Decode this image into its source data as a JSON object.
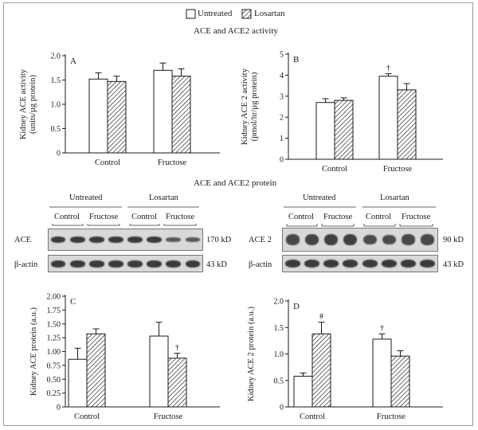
{
  "legend": {
    "untreated": "Untreated",
    "losartan": "Losartan"
  },
  "sections": {
    "activity_title": "ACE and ACE2 activity",
    "protein_title": "ACE and ACE2 protein"
  },
  "blots": {
    "left": {
      "group_labels": [
        "Untreated",
        "Losartan"
      ],
      "sub_labels": [
        "Control",
        "Fructose",
        "Control",
        "Fructose"
      ],
      "row_labels": [
        "ACE",
        "β-actin"
      ],
      "sizes": [
        "170 kD",
        "43 kD"
      ]
    },
    "right": {
      "group_labels": [
        "Untreated",
        "Losartan"
      ],
      "sub_labels": [
        "Control",
        "Fructose",
        "Control",
        "Fructose"
      ],
      "row_labels": [
        "ACE 2",
        "β-actin"
      ],
      "sizes": [
        "90 kD",
        "43 kD"
      ]
    }
  },
  "colors": {
    "bar_edge": "#1a1a1a",
    "untreated_fill": "#ffffff",
    "hatch": "#1a1a1a",
    "band": "#3a3a3a"
  },
  "chart_data": [
    {
      "type": "bar",
      "panel_letter": "A",
      "title": "",
      "ylabel": "Kidney ACE activity\n(units/µg protein)",
      "categories": [
        "Control",
        "Fructose"
      ],
      "ylim": [
        0,
        2.0
      ],
      "yticks": [
        "0",
        "0.5",
        "1.0",
        "1.5",
        "2.0"
      ],
      "series": [
        {
          "name": "Untreated",
          "values": [
            1.52,
            1.7
          ],
          "errors": [
            0.13,
            0.15
          ]
        },
        {
          "name": "Losartan",
          "values": [
            1.47,
            1.58
          ],
          "errors": [
            0.11,
            0.15
          ]
        }
      ],
      "annotations": [],
      "grid": false
    },
    {
      "type": "bar",
      "panel_letter": "B",
      "title": "",
      "ylabel": "Kidney ACE 2 activity\n(pmol/hr/µg protein)",
      "categories": [
        "Control",
        "Fructose"
      ],
      "ylim": [
        0,
        5
      ],
      "yticks": [
        "0",
        "1",
        "2",
        "3",
        "4",
        "5"
      ],
      "series": [
        {
          "name": "Untreated",
          "values": [
            2.7,
            3.95
          ],
          "errors": [
            0.18,
            0.12
          ]
        },
        {
          "name": "Losartan",
          "values": [
            2.8,
            3.3
          ],
          "errors": [
            0.12,
            0.3
          ]
        }
      ],
      "annotations": [
        {
          "series": 0,
          "category": 1,
          "symbol": "†"
        }
      ],
      "grid": false
    },
    {
      "type": "bar",
      "panel_letter": "C",
      "title": "",
      "ylabel": "Kidney ACE protein (a.u.)",
      "categories": [
        "Control",
        "Fructose"
      ],
      "ylim": [
        0,
        2.0
      ],
      "yticks": [
        "0",
        "0.25",
        "0.50",
        "0.75",
        "1.00",
        "1.25",
        "1.50",
        "1.75",
        "2.00"
      ],
      "series": [
        {
          "name": "Untreated",
          "values": [
            0.86,
            1.28
          ],
          "errors": [
            0.2,
            0.25
          ]
        },
        {
          "name": "Losartan",
          "values": [
            1.32,
            0.88
          ],
          "errors": [
            0.09,
            0.09
          ]
        }
      ],
      "annotations": [
        {
          "series": 1,
          "category": 1,
          "symbol": "†"
        }
      ],
      "grid": false
    },
    {
      "type": "bar",
      "panel_letter": "D",
      "title": "",
      "ylabel": "Kidney ACE 2 protein (a.u.)",
      "categories": [
        "Control",
        "Fructose"
      ],
      "ylim": [
        0,
        2.0
      ],
      "yticks": [
        "0",
        "0.5",
        "1.0",
        "1.5",
        "2.0"
      ],
      "series": [
        {
          "name": "Untreated",
          "values": [
            0.58,
            1.28
          ],
          "errors": [
            0.06,
            0.1
          ]
        },
        {
          "name": "Losartan",
          "values": [
            1.38,
            0.96
          ],
          "errors": [
            0.22,
            0.1
          ]
        }
      ],
      "annotations": [
        {
          "series": 1,
          "category": 0,
          "symbol": "#"
        },
        {
          "series": 0,
          "category": 1,
          "symbol": "†"
        }
      ],
      "grid": false
    }
  ]
}
